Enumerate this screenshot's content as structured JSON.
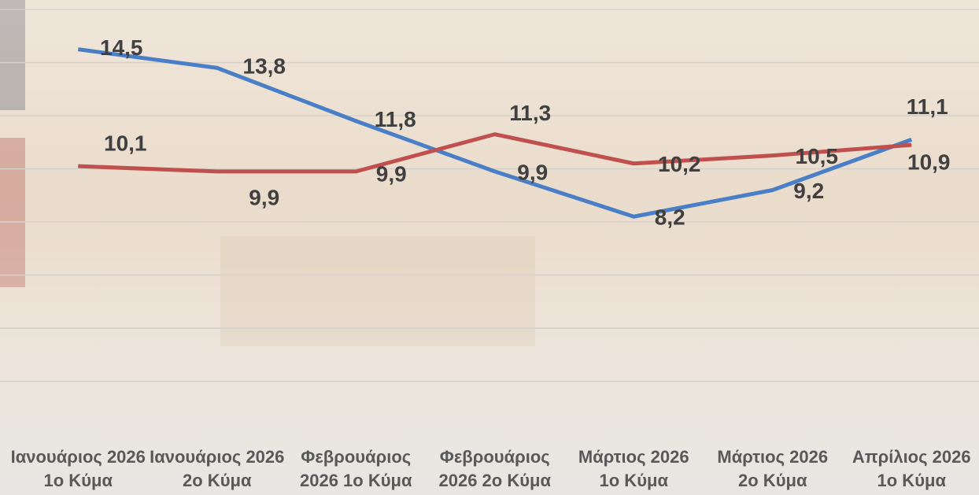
{
  "chart_data": {
    "type": "line",
    "categories": [
      "Ιανουάριος 2026 1ο Κύμα",
      "Ιανουάριος 2026 2ο Κύμα",
      "Φεβρουάριος 2026 1ο Κύμα",
      "Φεβρουάριος 2026 2ο Κύμα",
      "Μάρτιος 2026 1ο Κύμα",
      "Μάρτιος 2026 2ο Κύμα",
      "Απρίλιος 2026 1ο Κύμα"
    ],
    "series": [
      {
        "color": "#4a7fc8",
        "values": [
          14.5,
          13.8,
          11.8,
          9.9,
          8.2,
          9.2,
          11.1
        ],
        "value_labels": [
          "14,5",
          "13,8",
          "11,8",
          "9,9",
          "8,2",
          "9,2",
          "11,1"
        ]
      },
      {
        "color": "#c0504d",
        "values": [
          10.1,
          9.9,
          9.9,
          11.3,
          10.2,
          10.5,
          10.9
        ],
        "value_labels": [
          "10,1",
          "9,9",
          "9,9",
          "11,3",
          "10,2",
          "10,5",
          "10,9"
        ]
      }
    ],
    "ylim": [
      0,
      16
    ],
    "yticks": [
      2,
      4,
      6,
      8,
      10,
      12,
      14,
      16
    ],
    "grid": true
  }
}
